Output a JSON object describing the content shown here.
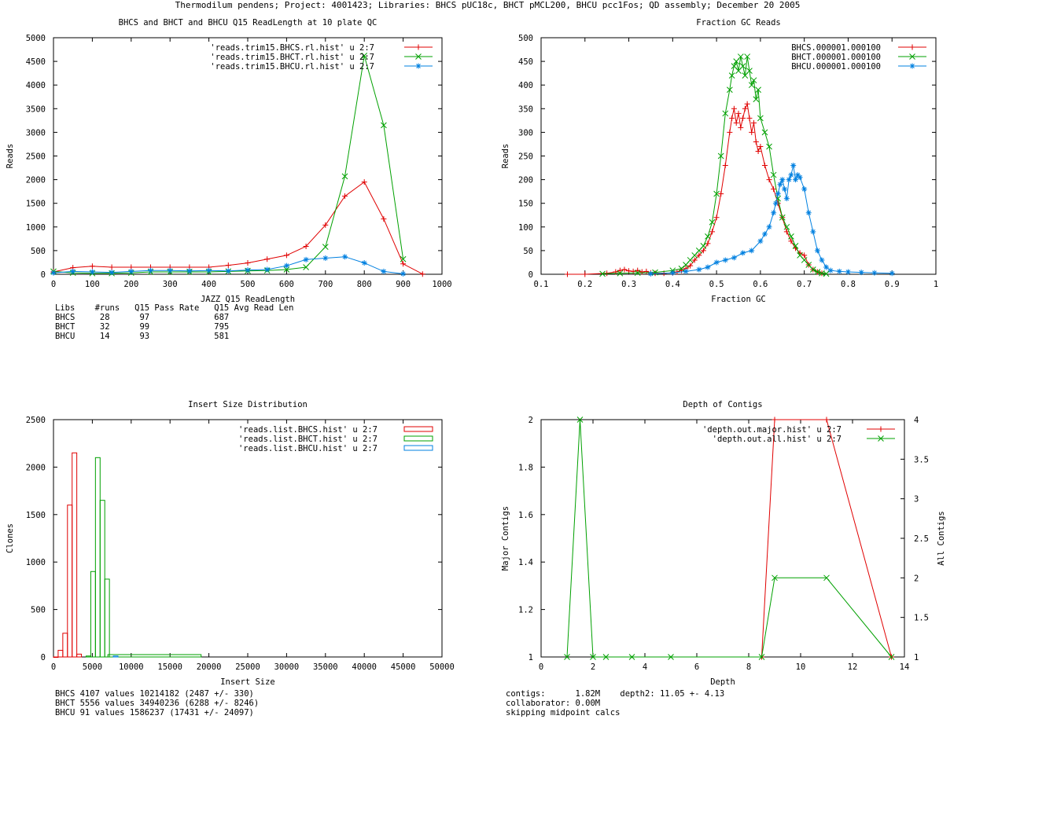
{
  "title": "Thermodilum pendens; Project: 4001423; Libraries: BHCS pUC18c, BHCT pMCL200, BHCU pcc1Fos; QD assembly; December 20 2005",
  "colors": {
    "red": "#e00000",
    "green": "#00a000",
    "blue": "#0080e0"
  },
  "chart_data": [
    {
      "type": "line",
      "title": "BHCS and BHCT and BHCU Q15 ReadLength at 10 plate QC",
      "xlabel": "JAZZ Q15 ReadLength",
      "ylabel": "Reads",
      "xlim": [
        0,
        1000
      ],
      "ylim": [
        0,
        5000
      ],
      "xticks": [
        0,
        100,
        200,
        300,
        400,
        500,
        600,
        700,
        800,
        900,
        1000
      ],
      "yticks": [
        0,
        500,
        1000,
        1500,
        2000,
        2500,
        3000,
        3500,
        4000,
        4500,
        5000
      ],
      "legend": "top-right",
      "series": [
        {
          "name": "'reads.trim15.BHCS.rl.hist' u 2:7",
          "color": "red",
          "marker": "plus",
          "x": [
            0,
            50,
            100,
            150,
            200,
            250,
            300,
            350,
            400,
            450,
            500,
            550,
            600,
            650,
            700,
            750,
            800,
            850,
            900,
            950
          ],
          "y": [
            50,
            140,
            170,
            150,
            150,
            150,
            150,
            150,
            150,
            190,
            240,
            320,
            400,
            590,
            1040,
            1650,
            1950,
            1170,
            220,
            5
          ]
        },
        {
          "name": "'reads.trim15.BHCT.rl.hist' u 2:7",
          "color": "green",
          "marker": "x",
          "x": [
            0,
            50,
            100,
            150,
            200,
            250,
            300,
            350,
            400,
            450,
            500,
            550,
            600,
            650,
            700,
            750,
            800,
            850,
            900
          ],
          "y": [
            60,
            30,
            20,
            20,
            30,
            50,
            50,
            50,
            50,
            60,
            70,
            80,
            100,
            150,
            580,
            2070,
            4620,
            3150,
            320
          ]
        },
        {
          "name": "'reads.trim15.BHCU.rl.hist' u 2:7",
          "color": "blue",
          "marker": "star",
          "x": [
            0,
            50,
            100,
            150,
            200,
            250,
            300,
            350,
            400,
            450,
            500,
            550,
            600,
            650,
            700,
            750,
            800,
            850,
            900
          ],
          "y": [
            30,
            60,
            50,
            40,
            60,
            80,
            80,
            70,
            80,
            70,
            90,
            100,
            180,
            310,
            340,
            370,
            240,
            60,
            10
          ]
        }
      ],
      "stats": {
        "header": [
          "Libs",
          "#runs",
          "Q15 Pass Rate",
          "Q15 Avg Read Len"
        ],
        "rows": [
          [
            "BHCS",
            "28",
            "97",
            "687"
          ],
          [
            "BHCT",
            "32",
            "99",
            "795"
          ],
          [
            "BHCU",
            "14",
            "93",
            "581"
          ]
        ]
      }
    },
    {
      "type": "line",
      "title": "Fraction GC Reads",
      "xlabel": "Fraction GC",
      "ylabel": "Reads",
      "xlim": [
        0.1,
        1
      ],
      "ylim": [
        0,
        500
      ],
      "xticks": [
        "0.1",
        "0.2",
        "0.3",
        "0.4",
        "0.5",
        "0.6",
        "0.7",
        "0.8",
        "0.9",
        "1"
      ],
      "yticks": [
        0,
        50,
        100,
        150,
        200,
        250,
        300,
        350,
        400,
        450,
        500
      ],
      "legend": "top-right",
      "series": [
        {
          "name": "BHCS.000001.000100",
          "color": "red",
          "marker": "plus",
          "x": [
            0.16,
            0.2,
            0.25,
            0.27,
            0.28,
            0.29,
            0.3,
            0.31,
            0.32,
            0.33,
            0.34,
            0.35,
            0.36,
            0.38,
            0.4,
            0.41,
            0.42,
            0.43,
            0.44,
            0.45,
            0.46,
            0.47,
            0.48,
            0.49,
            0.5,
            0.51,
            0.52,
            0.53,
            0.535,
            0.54,
            0.545,
            0.55,
            0.555,
            0.56,
            0.565,
            0.57,
            0.575,
            0.58,
            0.585,
            0.59,
            0.595,
            0.6,
            0.61,
            0.62,
            0.63,
            0.64,
            0.65,
            0.66,
            0.67,
            0.68,
            0.69,
            0.7,
            0.71,
            0.72,
            0.73,
            0.74
          ],
          "y": [
            0,
            0,
            2,
            5,
            8,
            10,
            7,
            6,
            8,
            5,
            6,
            3,
            2,
            2,
            3,
            5,
            8,
            12,
            18,
            30,
            40,
            50,
            65,
            90,
            120,
            170,
            230,
            300,
            330,
            350,
            320,
            340,
            310,
            330,
            350,
            360,
            330,
            300,
            320,
            280,
            260,
            270,
            230,
            200,
            180,
            150,
            120,
            90,
            70,
            55,
            45,
            40,
            20,
            10,
            5,
            2
          ]
        },
        {
          "name": "BHCT.000001.000100",
          "color": "green",
          "marker": "x",
          "x": [
            0.24,
            0.28,
            0.32,
            0.36,
            0.4,
            0.42,
            0.43,
            0.44,
            0.45,
            0.46,
            0.47,
            0.48,
            0.49,
            0.5,
            0.51,
            0.52,
            0.53,
            0.535,
            0.54,
            0.545,
            0.55,
            0.555,
            0.56,
            0.565,
            0.57,
            0.575,
            0.58,
            0.585,
            0.59,
            0.595,
            0.6,
            0.61,
            0.62,
            0.63,
            0.64,
            0.65,
            0.66,
            0.67,
            0.68,
            0.69,
            0.7,
            0.71,
            0.72,
            0.73,
            0.74,
            0.75
          ],
          "y": [
            1,
            2,
            3,
            4,
            8,
            12,
            20,
            30,
            40,
            50,
            60,
            80,
            110,
            170,
            250,
            340,
            390,
            420,
            440,
            450,
            430,
            460,
            440,
            420,
            460,
            430,
            400,
            410,
            370,
            390,
            330,
            300,
            270,
            210,
            160,
            120,
            100,
            80,
            60,
            40,
            30,
            20,
            10,
            5,
            2,
            1
          ]
        },
        {
          "name": "BHCU.000001.000100",
          "color": "blue",
          "marker": "star",
          "x": [
            0.35,
            0.4,
            0.43,
            0.46,
            0.48,
            0.5,
            0.52,
            0.54,
            0.56,
            0.58,
            0.6,
            0.61,
            0.62,
            0.63,
            0.635,
            0.64,
            0.645,
            0.65,
            0.655,
            0.66,
            0.665,
            0.67,
            0.675,
            0.68,
            0.685,
            0.69,
            0.7,
            0.71,
            0.72,
            0.73,
            0.74,
            0.75,
            0.76,
            0.78,
            0.8,
            0.83,
            0.86,
            0.9
          ],
          "y": [
            1,
            3,
            6,
            10,
            15,
            25,
            30,
            35,
            45,
            50,
            70,
            85,
            100,
            130,
            150,
            170,
            190,
            200,
            180,
            160,
            200,
            210,
            230,
            200,
            210,
            205,
            180,
            130,
            90,
            50,
            30,
            15,
            8,
            6,
            5,
            4,
            3,
            2
          ]
        }
      ]
    },
    {
      "type": "bar",
      "title": "Insert Size Distribution",
      "xlabel": "Insert Size",
      "ylabel": "Clones",
      "xlim": [
        0,
        50000
      ],
      "ylim": [
        0,
        2500
      ],
      "xticks": [
        0,
        5000,
        10000,
        15000,
        20000,
        25000,
        30000,
        35000,
        40000,
        45000,
        50000
      ],
      "yticks": [
        0,
        500,
        1000,
        1500,
        2000,
        2500
      ],
      "legend": "top-right",
      "bin_width": 600,
      "series": [
        {
          "name": "'reads.list.BHCS.hist' u 2:7",
          "color": "red",
          "x": [
            300,
            900,
            1500,
            2100,
            2700,
            3300
          ],
          "y": [
            0,
            70,
            250,
            1600,
            2150,
            30
          ]
        },
        {
          "name": "'reads.list.BHCT.hist' u 2:7",
          "color": "green",
          "x": [
            4500,
            5100,
            5700,
            6300,
            6900,
            13000
          ],
          "y": [
            10,
            900,
            2100,
            1650,
            820,
            25
          ]
        },
        {
          "name": "'reads.list.BHCU.hist' u 2:7",
          "color": "blue",
          "x": [
            8000
          ],
          "y": [
            10
          ]
        }
      ],
      "stats": [
        "BHCS 4107 values 10214182 (2487 +/- 330)",
        "BHCT 5556 values 34940236 (6288 +/- 8246)",
        "BHCU 91 values 1586237 (17431 +/- 24097)"
      ]
    },
    {
      "type": "line",
      "title": "Depth of Contigs",
      "xlabel": "Depth",
      "ylabel": "Major Contigs",
      "y2label": "All Contigs",
      "xlim": [
        0,
        14
      ],
      "ylim": [
        1,
        2
      ],
      "y2lim": [
        1,
        4
      ],
      "xticks": [
        0,
        2,
        4,
        6,
        8,
        10,
        12,
        14
      ],
      "yticks": [
        "1",
        "1.2",
        "1.4",
        "1.6",
        "1.8",
        "2"
      ],
      "y2ticks": [
        "1",
        "1.5",
        "2",
        "2.5",
        "3",
        "3.5",
        "4"
      ],
      "legend": "top-right",
      "series": [
        {
          "name": "'depth.out.major.hist' u 2:7",
          "color": "red",
          "marker": "plus",
          "axis": "y",
          "x": [
            8.5,
            9,
            11,
            13.5
          ],
          "y": [
            1,
            2,
            2,
            1
          ]
        },
        {
          "name": "'depth.out.all.hist' u 2:7",
          "color": "green",
          "marker": "x",
          "axis": "y2",
          "x": [
            1,
            1.5,
            2,
            2.5,
            3.5,
            5,
            8.5,
            9,
            11,
            13.5
          ],
          "y": [
            1,
            4,
            1,
            1,
            1,
            1,
            1,
            2,
            2,
            1
          ]
        }
      ],
      "stats": [
        "contigs:      1.82M    depth2: 11.05 +- 4.13",
        "collaborator: 0.00M",
        "skipping midpoint calcs"
      ]
    }
  ]
}
